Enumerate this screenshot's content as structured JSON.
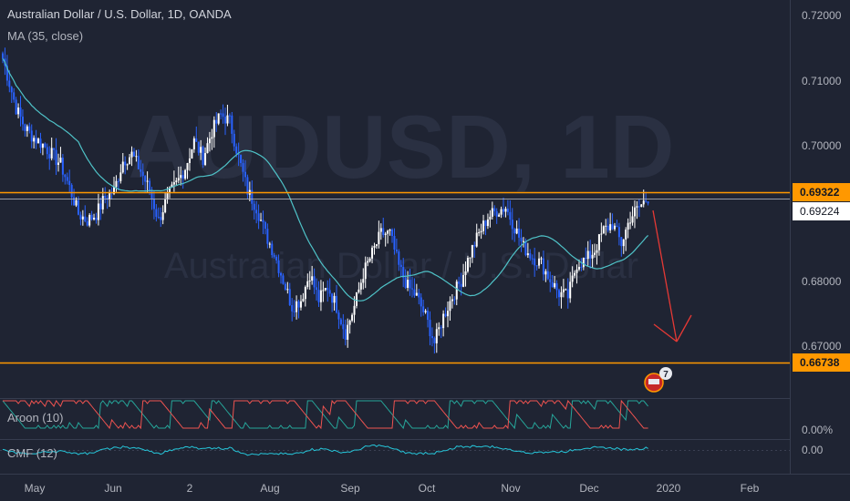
{
  "header": {
    "title": "Australian Dollar / U.S. Dollar, 1D, OANDA",
    "indicator": "MA (35, close)"
  },
  "watermark": {
    "symbol": "AUDUSD, 1D",
    "name": "Australian Dollar / U.S. Dollar"
  },
  "colors": {
    "background": "#1f2433",
    "bull_candle": "#ffffff",
    "bear_candle": "#2962ff",
    "ma_line": "#4fc3c8",
    "level_line": "#ff9800",
    "arrow": "#e53935",
    "aroon_up": "#26a69a",
    "aroon_down": "#ef5350",
    "cmf": "#26c6da"
  },
  "chart_data": {
    "type": "candlestick",
    "price_axis": {
      "ticks": [
        "0.72000",
        "0.71000",
        "0.70000",
        "0.69322",
        "0.69224",
        "0.68000",
        "0.67000",
        "0.66738"
      ],
      "range": [
        0.6642,
        0.7227
      ]
    },
    "time_axis": {
      "labels": [
        "May",
        "Jun",
        "2",
        "Aug",
        "Sep",
        "Oct",
        "Nov",
        "Dec",
        "2020",
        "Feb"
      ]
    },
    "levels": [
      {
        "price": 0.69322,
        "label": "0.69322"
      },
      {
        "price": 0.66738,
        "label": "0.66738"
      }
    ],
    "last_price": {
      "price": 0.69224,
      "label": "0.69224"
    },
    "projection": {
      "from_price": 0.691,
      "to_price": 0.6702,
      "direction": "down"
    },
    "indicators": [
      {
        "name": "Aroon (10)",
        "axis_label": "0.00%"
      },
      {
        "name": "CMF (12)",
        "axis_label": "0.00"
      }
    ],
    "event_badge": {
      "count": "7"
    },
    "anchors": [
      [
        0,
        0.7135
      ],
      [
        6,
        0.706
      ],
      [
        10,
        0.703
      ],
      [
        14,
        0.7015
      ],
      [
        18,
        0.7005
      ],
      [
        22,
        0.699
      ],
      [
        26,
        0.6975
      ],
      [
        30,
        0.694
      ],
      [
        34,
        0.69
      ],
      [
        38,
        0.689
      ],
      [
        42,
        0.69
      ],
      [
        46,
        0.6925
      ],
      [
        50,
        0.6935
      ],
      [
        54,
        0.698
      ],
      [
        58,
        0.699
      ],
      [
        62,
        0.6965
      ],
      [
        66,
        0.6935
      ],
      [
        70,
        0.689
      ],
      [
        74,
        0.6925
      ],
      [
        78,
        0.6945
      ],
      [
        82,
        0.697
      ],
      [
        86,
        0.701
      ],
      [
        90,
        0.6985
      ],
      [
        94,
        0.7025
      ],
      [
        98,
        0.705
      ],
      [
        102,
        0.704
      ],
      [
        106,
        0.6985
      ],
      [
        110,
        0.6935
      ],
      [
        114,
        0.691
      ],
      [
        118,
        0.687
      ],
      [
        122,
        0.684
      ],
      [
        126,
        0.68
      ],
      [
        130,
        0.676
      ],
      [
        134,
        0.677
      ],
      [
        138,
        0.681
      ],
      [
        142,
        0.677
      ],
      [
        146,
        0.679
      ],
      [
        150,
        0.676
      ],
      [
        154,
        0.672
      ],
      [
        158,
        0.676
      ],
      [
        162,
        0.681
      ],
      [
        166,
        0.684
      ],
      [
        170,
        0.687
      ],
      [
        174,
        0.687
      ],
      [
        178,
        0.682
      ],
      [
        182,
        0.679
      ],
      [
        186,
        0.6775
      ],
      [
        190,
        0.6745
      ],
      [
        194,
        0.6705
      ],
      [
        198,
        0.6745
      ],
      [
        202,
        0.6775
      ],
      [
        206,
        0.68
      ],
      [
        210,
        0.684
      ],
      [
        214,
        0.687
      ],
      [
        218,
        0.6895
      ],
      [
        222,
        0.6905
      ],
      [
        226,
        0.691
      ],
      [
        230,
        0.688
      ],
      [
        234,
        0.685
      ],
      [
        238,
        0.6835
      ],
      [
        242,
        0.6825
      ],
      [
        246,
        0.68
      ],
      [
        250,
        0.678
      ],
      [
        254,
        0.6775
      ],
      [
        258,
        0.6825
      ],
      [
        262,
        0.683
      ],
      [
        266,
        0.6845
      ],
      [
        270,
        0.6875
      ],
      [
        274,
        0.6885
      ],
      [
        278,
        0.6855
      ],
      [
        282,
        0.6895
      ],
      [
        286,
        0.691
      ],
      [
        290,
        0.6925
      ]
    ]
  }
}
